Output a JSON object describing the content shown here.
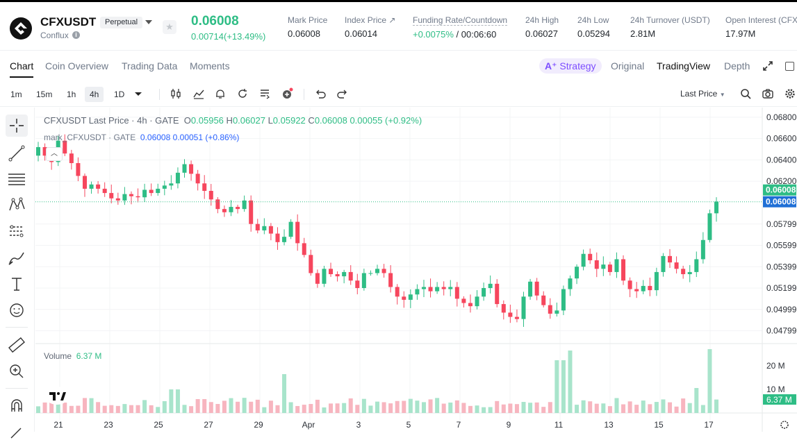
{
  "header": {
    "symbol": "CFXUSDT",
    "badge": "Perpetual",
    "coin_name": "Conflux",
    "last_price": "0.06008",
    "change": "0.00714(+13.49%)",
    "stats": [
      {
        "label": "Mark Price",
        "value": "0.06008"
      },
      {
        "label": "Index Price ↗",
        "value": "0.06014"
      },
      {
        "label": "Funding Rate/Countdown",
        "value_green": "+0.0075%",
        "value": " / 00:06:60"
      },
      {
        "label": "24h High",
        "value": "0.06027"
      },
      {
        "label": "24h Low",
        "value": "0.05294"
      },
      {
        "label": "24h Turnover (USDT)",
        "value": "2.81M"
      },
      {
        "label": "Open Interest (CFX)",
        "value": "17.97M"
      }
    ]
  },
  "tabs": [
    "Chart",
    "Coin Overview",
    "Trading Data",
    "Moments"
  ],
  "view_tabs": {
    "strategy": "Strategy",
    "original": "Original",
    "tradingview": "TradingView",
    "depth": "Depth"
  },
  "toolbar": {
    "timeframes": [
      "1m",
      "15m",
      "1h",
      "4h",
      "1D"
    ],
    "active_timeframe": "4h",
    "price_type": "Last Price"
  },
  "legend": {
    "title": "CFXUSDT Last Price · 4h · GATE",
    "o_label": "O",
    "o": "0.05956",
    "h_label": "H",
    "h": "0.06027",
    "l_label": "L",
    "l": "0.05922",
    "c_label": "C",
    "c": "0.06008",
    "chg": "0.00055 (+0.92%)",
    "mark_label": "mark_CFXUSDT · GATE",
    "mark_price": "0.06008",
    "mark_chg": "0.00051 (+0.86%)",
    "volume_label": "Volume",
    "volume_value": "6.37 M"
  },
  "colors": {
    "up": "#2ebd85",
    "down": "#f6465d",
    "accent": "#7c4dff",
    "mark": "#2962ff"
  },
  "chart_data": {
    "type": "candlestick",
    "y_ticks": [
      "0.06800",
      "0.06600",
      "0.06400",
      "0.06200",
      "0.05799",
      "0.05599",
      "0.05399",
      "0.05199",
      "0.04999",
      "0.04799"
    ],
    "price_tags": [
      "0.06008",
      "0.06008"
    ],
    "volume_ticks": [
      "20 M",
      "10 M"
    ],
    "volume_tag": "6.37 M",
    "x_ticks": [
      "21",
      "23",
      "25",
      "27",
      "29",
      "Apr",
      "3",
      "5",
      "7",
      "9",
      "11",
      "13",
      "15",
      "17"
    ],
    "closes": [
      0.0652,
      0.0644,
      0.0638,
      0.0658,
      0.0646,
      0.0637,
      0.0625,
      0.0613,
      0.0617,
      0.0613,
      0.0609,
      0.0604,
      0.0602,
      0.0608,
      0.0606,
      0.0605,
      0.0612,
      0.0609,
      0.0613,
      0.0616,
      0.0618,
      0.0628,
      0.0636,
      0.0627,
      0.0618,
      0.0611,
      0.0603,
      0.0594,
      0.0591,
      0.0596,
      0.0594,
      0.0602,
      0.058,
      0.0574,
      0.0578,
      0.0571,
      0.0563,
      0.0568,
      0.0582,
      0.0562,
      0.0551,
      0.0534,
      0.0524,
      0.0538,
      0.0533,
      0.0531,
      0.0535,
      0.0527,
      0.052,
      0.0534,
      0.0534,
      0.0538,
      0.0534,
      0.0521,
      0.0512,
      0.0509,
      0.0514,
      0.0519,
      0.0521,
      0.0517,
      0.0521,
      0.0519,
      0.0521,
      0.051,
      0.0506,
      0.0503,
      0.0512,
      0.052,
      0.0524,
      0.0505,
      0.0497,
      0.0493,
      0.0491,
      0.0512,
      0.0526,
      0.0513,
      0.0504,
      0.0496,
      0.0499,
      0.0519,
      0.0529,
      0.054,
      0.0552,
      0.0546,
      0.0538,
      0.0542,
      0.0535,
      0.0547,
      0.0527,
      0.0519,
      0.0517,
      0.0522,
      0.0518,
      0.0535,
      0.055,
      0.0544,
      0.0538,
      0.0533,
      0.0535,
      0.0547,
      0.0565,
      0.059,
      0.0601
    ]
  }
}
